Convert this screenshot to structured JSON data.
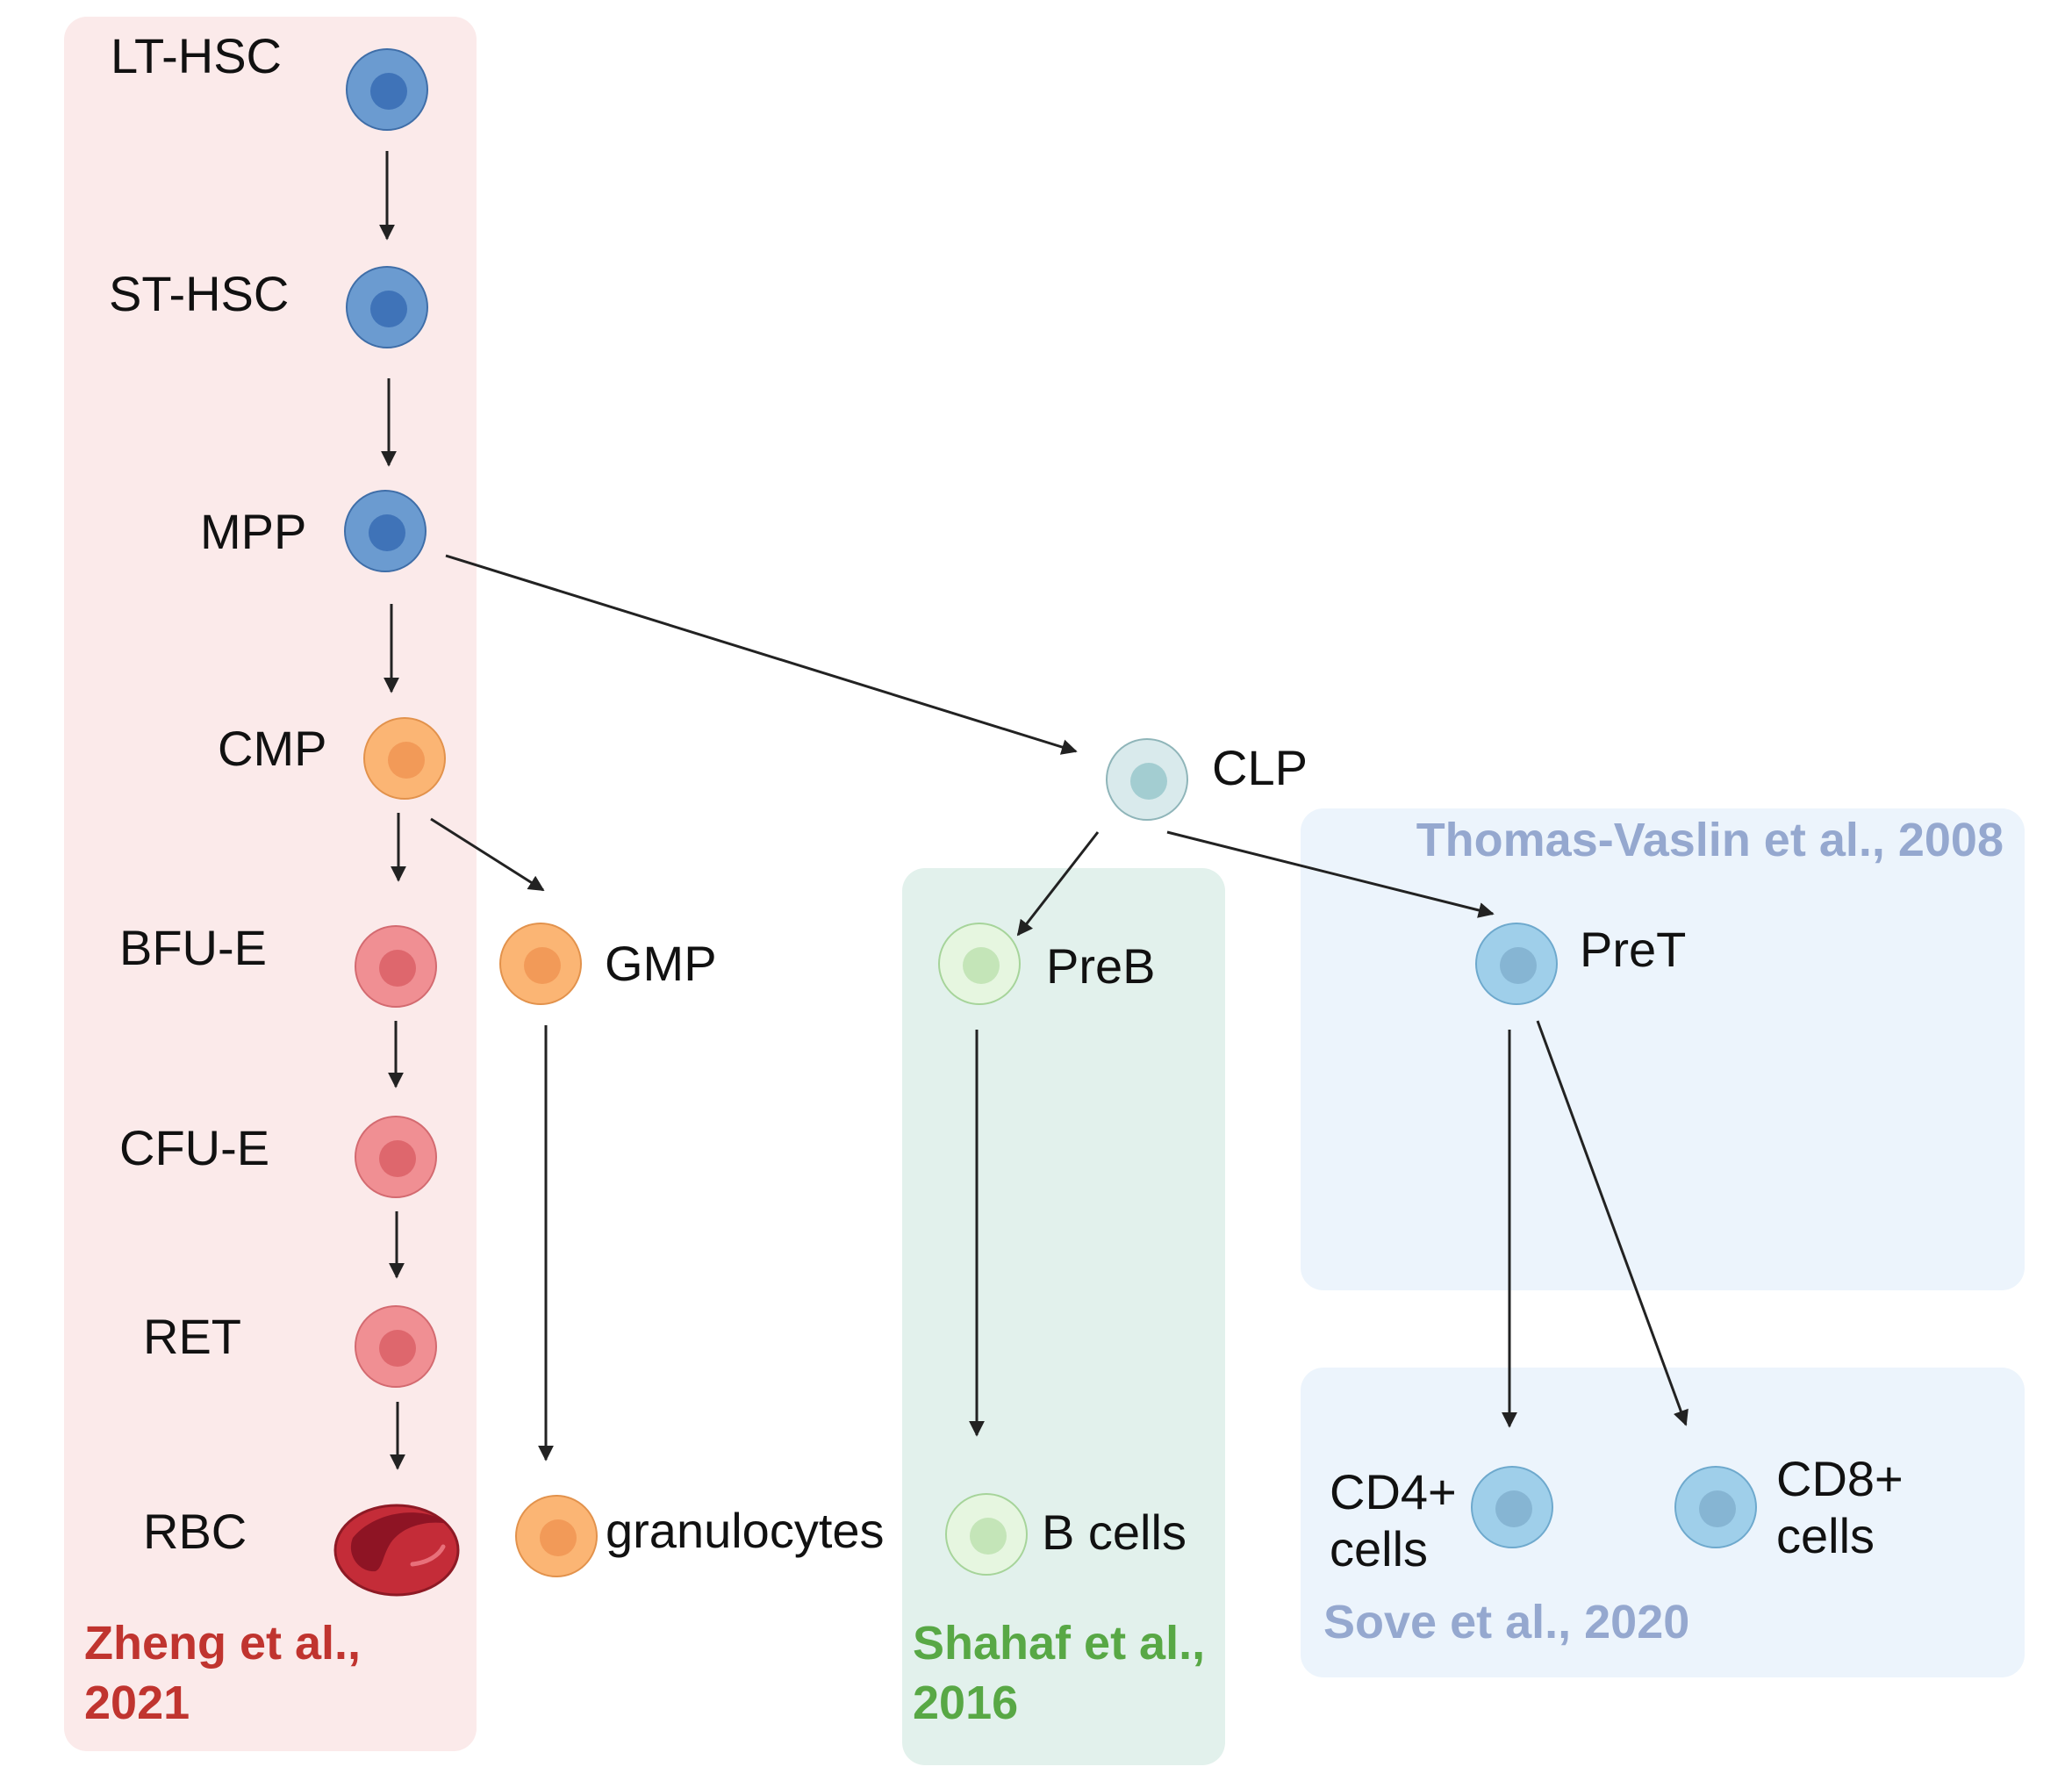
{
  "groups": {
    "zheng": {
      "label_line1": "Zheng et al.,",
      "label_line2": "2021",
      "color": "#c0342f",
      "fill": "#fbeaea"
    },
    "shahaf": {
      "label_line1": "Shahaf et al.,",
      "label_line2": "2016",
      "color": "#58a845",
      "fill": "#e2f1ec"
    },
    "thomas": {
      "label": "Thomas-Vaslin et al., 2008",
      "color": "#95a8cf",
      "fill": "#ecf4fc"
    },
    "sove": {
      "label": "Sove et al., 2020",
      "color": "#95a8cf",
      "fill": "#ecf4fc"
    }
  },
  "cells": {
    "lt_hsc": {
      "label": "LT-HSC",
      "type": "hsc"
    },
    "st_hsc": {
      "label": "ST-HSC",
      "type": "hsc"
    },
    "mpp": {
      "label": "MPP",
      "type": "hsc"
    },
    "cmp": {
      "label": "CMP",
      "type": "myeloid"
    },
    "bfu_e": {
      "label": "BFU-E",
      "type": "erythroid"
    },
    "cfu_e": {
      "label": "CFU-E",
      "type": "erythroid"
    },
    "ret": {
      "label": "RET",
      "type": "erythroid"
    },
    "rbc": {
      "label": "RBC",
      "type": "rbc"
    },
    "gmp": {
      "label": "GMP",
      "type": "myeloid"
    },
    "granulocytes": {
      "label": "granulocytes",
      "type": "myeloid"
    },
    "clp": {
      "label": "CLP",
      "type": "lymphoid"
    },
    "preb": {
      "label": "PreB",
      "type": "bcell"
    },
    "bcells": {
      "label": "B cells",
      "type": "bcell"
    },
    "pret": {
      "label": "PreT",
      "type": "tcell"
    },
    "cd4": {
      "label_line1": "CD4+",
      "label_line2": "cells",
      "type": "tcell"
    },
    "cd8": {
      "label_line1": "CD8+",
      "label_line2": "cells",
      "type": "tcell"
    }
  },
  "colors": {
    "hsc": {
      "outer": "#6b9bd0",
      "inner": "#3f73b8",
      "stroke": "#3f6ea8"
    },
    "myeloid": {
      "outer": "#fbb574",
      "inner": "#f29a58",
      "stroke": "#e2924c"
    },
    "erythroid": {
      "outer": "#f08f93",
      "inner": "#de676d",
      "stroke": "#d36a70"
    },
    "rbc": {
      "outer": "#c42c38",
      "inner": "#8e1424",
      "stroke": "#8e1a25"
    },
    "lymphoid": {
      "outer": "#d9eaec",
      "inner": "#a3cdd1",
      "stroke": "#8fb5b9"
    },
    "bcell": {
      "outer": "#e6f6e0",
      "inner": "#c4e5b8",
      "stroke": "#a6d49a"
    },
    "tcell": {
      "outer": "#9fcfea",
      "inner": "#86b5d3",
      "stroke": "#6ea9cd"
    },
    "arrow": "#222222"
  }
}
